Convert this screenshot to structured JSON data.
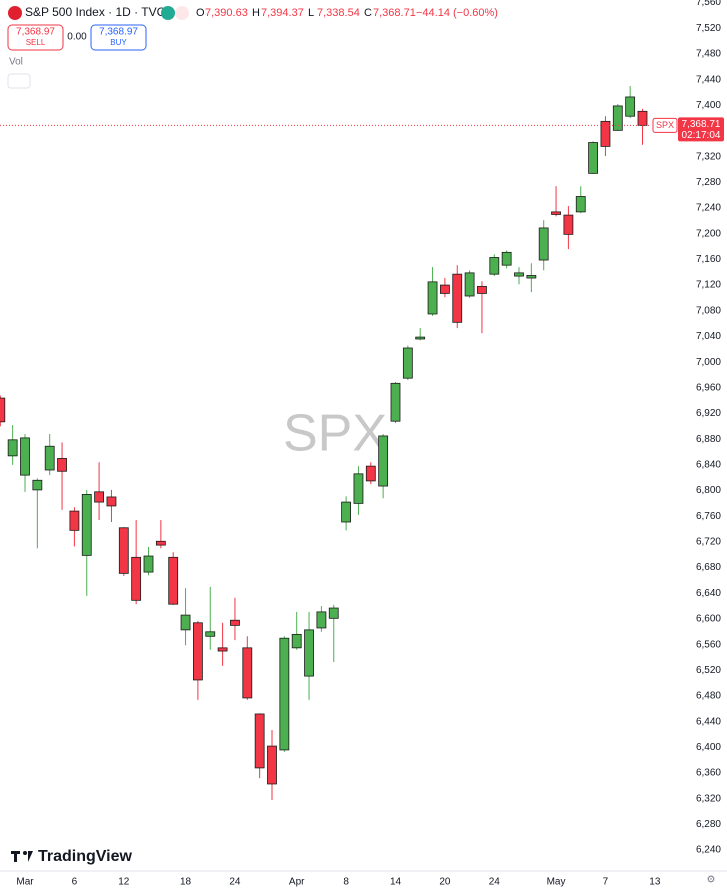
{
  "header": {
    "symbol": "S&P 500 Index · 1D · TVC",
    "ohlc": [
      {
        "label": "O",
        "value": "7,390.63"
      },
      {
        "label": "H",
        "value": "7,394.37"
      },
      {
        "label": "L",
        "value": "7,338.54"
      },
      {
        "label": "C",
        "value": "7,368.71"
      }
    ],
    "change": "−44.14 (−0.60%)",
    "sell": {
      "price": "7,368.97",
      "label": "SELL"
    },
    "spread": "0.00",
    "buy": {
      "price": "7,368.97",
      "label": "BUY"
    },
    "vol": "Vol"
  },
  "price_badge": {
    "symbol": "SPX",
    "price": "7,368.71",
    "countdown": "02:17:04"
  },
  "watermark": "SPX",
  "logo": "TradingView",
  "chart_data": {
    "type": "candlestick",
    "up_color": "#4caf50",
    "down_color": "#f23645",
    "categories": [
      null,
      null,
      "Mar",
      null,
      null,
      null,
      "6",
      null,
      null,
      null,
      "12",
      null,
      null,
      null,
      null,
      "18",
      null,
      null,
      null,
      "24",
      null,
      null,
      null,
      null,
      "Apr",
      null,
      null,
      null,
      "8",
      null,
      null,
      null,
      "14",
      null,
      null,
      null,
      "20",
      null,
      null,
      null,
      "24",
      null,
      null,
      null,
      null,
      "May",
      null,
      null,
      null,
      "7",
      null,
      null,
      null,
      "13"
    ],
    "open": [
      6944,
      6854,
      6824,
      6801,
      6832,
      6850,
      6768,
      6699,
      6798,
      6790,
      6742,
      6696,
      6673,
      6721,
      6696,
      6583,
      6594,
      6573,
      6555,
      6598,
      6555,
      6452,
      6402,
      6396,
      6555,
      6511,
      6586,
      6601,
      6751,
      6780,
      6838,
      6807,
      6908,
      6975,
      7036,
      7075,
      7120,
      7137,
      7103,
      7118,
      7137,
      7151,
      7134,
      7131,
      7159,
      7234,
      7229,
      7234,
      7294,
      7375,
      7361,
      7383,
      7390.63,
      null
    ],
    "high": [
      6948,
      6902,
      6888,
      6819,
      6888,
      6875,
      6774,
      6801,
      6844,
      6801,
      6743,
      6754,
      6712,
      6754,
      6704,
      6648,
      6597,
      6650,
      6594,
      6633,
      6573,
      6453,
      6427,
      6573,
      6611,
      6611,
      6620,
      6622,
      6791,
      6838,
      6844,
      6888,
      6969,
      7026,
      7053,
      7148,
      7131,
      7151,
      7143,
      7126,
      7168,
      7174,
      7148,
      7154,
      7221,
      7274,
      7243,
      7274,
      7344,
      7383,
      7402,
      7430,
      7394.37,
      null
    ],
    "low": [
      6900,
      6840,
      6798,
      6710,
      6824,
      6770,
      6713,
      6636,
      6754,
      6751,
      6667,
      6623,
      6668,
      6710,
      6622,
      6559,
      6474,
      6552,
      6527,
      6567,
      6474,
      6352,
      6318,
      6393,
      6552,
      6474,
      6580,
      6533,
      6738,
      6762,
      6810,
      6788,
      6905,
      6972,
      7034,
      7072,
      7101,
      7053,
      7100,
      7045,
      7134,
      7146,
      7121,
      7109,
      7143,
      7227,
      7176,
      7232,
      7293,
      7321,
      7360,
      7380,
      7338.54,
      null
    ],
    "close": [
      6907,
      6879,
      6882,
      6816,
      6869,
      6830,
      6738,
      6794,
      6782,
      6776,
      6671,
      6629,
      6698,
      6715,
      6623,
      6606,
      6505,
      6580,
      6550,
      6590,
      6477,
      6368,
      6343,
      6570,
      6576,
      6583,
      6611,
      6617,
      6782,
      6826,
      6815,
      6885,
      6967,
      7022,
      7039,
      7125,
      7107,
      7062,
      7139,
      7107,
      7163,
      7171,
      7139,
      7135,
      7209,
      7230,
      7199,
      7258,
      7342,
      7336,
      7399,
      7413,
      7368.71,
      null
    ],
    "ylim": [
      6209,
      7564
    ],
    "yticks": [
      {
        "value": 6240,
        "label": "6,240"
      },
      {
        "value": 6280,
        "label": "6,280"
      },
      {
        "value": 6320,
        "label": "6,320"
      },
      {
        "value": 6360,
        "label": "6,360"
      },
      {
        "value": 6400,
        "label": "6,400"
      },
      {
        "value": 6440,
        "label": "6,440"
      },
      {
        "value": 6480,
        "label": "6,480"
      },
      {
        "value": 6520,
        "label": "6,520"
      },
      {
        "value": 6560,
        "label": "6,560"
      },
      {
        "value": 6600,
        "label": "6,600"
      },
      {
        "value": 6640,
        "label": "6,640"
      },
      {
        "value": 6680,
        "label": "6,680"
      },
      {
        "value": 6720,
        "label": "6,720"
      },
      {
        "value": 6760,
        "label": "6,760"
      },
      {
        "value": 6800,
        "label": "6,800"
      },
      {
        "value": 6840,
        "label": "6,840"
      },
      {
        "value": 6880,
        "label": "6,880"
      },
      {
        "value": 6920,
        "label": "6,920"
      },
      {
        "value": 6960,
        "label": "6,960"
      },
      {
        "value": 7000,
        "label": "7,000"
      },
      {
        "value": 7040,
        "label": "7,040"
      },
      {
        "value": 7080,
        "label": "7,080"
      },
      {
        "value": 7120,
        "label": "7,120"
      },
      {
        "value": 7160,
        "label": "7,160"
      },
      {
        "value": 7200,
        "label": "7,200"
      },
      {
        "value": 7240,
        "label": "7,240"
      },
      {
        "value": 7280,
        "label": "7,280"
      },
      {
        "value": 7320,
        "label": "7,320"
      },
      {
        "value": 7360,
        "label": "7,360"
      },
      {
        "value": 7400,
        "label": "7,400"
      },
      {
        "value": 7440,
        "label": "7,440"
      },
      {
        "value": 7480,
        "label": "7,480"
      },
      {
        "value": 7520,
        "label": "7,520"
      },
      {
        "value": 7560,
        "label": "7,560"
      }
    ],
    "grid": false
  }
}
